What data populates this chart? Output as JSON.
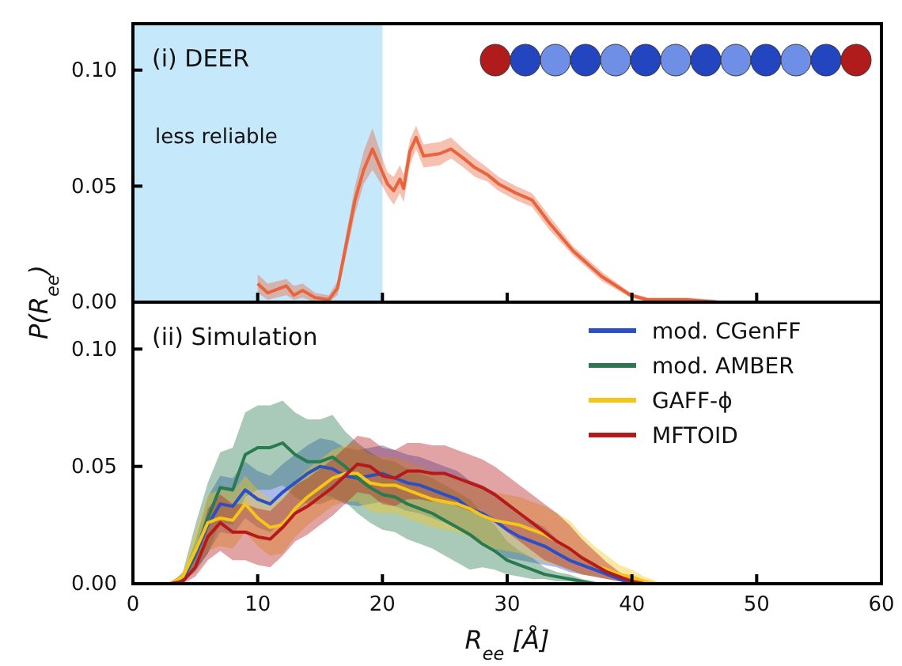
{
  "chart_data": [
    {
      "type": "line",
      "title": "(i) DEER",
      "ylabel": "P(R$_{ee}$)",
      "xlim": [
        0,
        60
      ],
      "ylim": [
        0,
        0.12
      ],
      "xticks": [
        0,
        10,
        20,
        30,
        40,
        50,
        60
      ],
      "yticks": [
        {
          "value": 0,
          "label": "0.00"
        },
        {
          "value": 0.05,
          "label": "0.05"
        },
        {
          "value": 0.1,
          "label": "0.10"
        }
      ],
      "tick_labels": "y",
      "grid": false,
      "legend": false,
      "bands": [
        {
          "axis": "x",
          "from": 0,
          "to": 20,
          "label": "less reliable",
          "color": "#c6e8fb"
        }
      ],
      "series": [
        {
          "color": "#e8643c",
          "x": [
            10,
            10.8,
            12.3,
            12.9,
            13.6,
            14.6,
            15.7,
            16.4,
            17.8,
            18.5,
            19.2,
            20,
            20.4,
            20.9,
            21.4,
            21.7,
            22.2,
            22.7,
            23.3,
            24.6,
            25.5,
            26.5,
            27.4,
            28.4,
            29.3,
            30.7,
            32,
            33.4,
            35.3,
            37.6,
            39.9,
            41.3,
            44.4,
            46.8
          ],
          "values": [
            0.008,
            0.004,
            0.007,
            0.003,
            0.005,
            0.002,
            0.001,
            0.006,
            0.044,
            0.057,
            0.066,
            0.056,
            0.051,
            0.048,
            0.053,
            0.049,
            0.065,
            0.071,
            0.063,
            0.064,
            0.066,
            0.062,
            0.058,
            0.055,
            0.051,
            0.047,
            0.044,
            0.034,
            0.022,
            0.011,
            0.003,
            0.001,
            0.001,
            0
          ],
          "lower": [
            0.004,
            0.001,
            0.003,
            0.001,
            0.002,
            0,
            0,
            0.003,
            0.038,
            0.051,
            0.057,
            0.05,
            0.046,
            0.042,
            0.047,
            0.043,
            0.059,
            0.066,
            0.058,
            0.059,
            0.062,
            0.058,
            0.054,
            0.052,
            0.048,
            0.044,
            0.041,
            0.031,
            0.02,
            0.009,
            0.002,
            0,
            0,
            0
          ],
          "upper": [
            0.012,
            0.008,
            0.01,
            0.007,
            0.008,
            0.004,
            0.003,
            0.009,
            0.05,
            0.065,
            0.075,
            0.062,
            0.056,
            0.054,
            0.059,
            0.055,
            0.07,
            0.076,
            0.068,
            0.069,
            0.071,
            0.066,
            0.062,
            0.058,
            0.054,
            0.05,
            0.047,
            0.037,
            0.024,
            0.013,
            0.004,
            0.002,
            0.002,
            0.001
          ]
        }
      ]
    },
    {
      "type": "line",
      "title": "(ii) Simulation",
      "xlabel": "R$_{ee}$ [Å]",
      "xlim": [
        0,
        60
      ],
      "ylim": [
        0,
        0.12
      ],
      "xticks": [
        0,
        10,
        20,
        30,
        40,
        50,
        60
      ],
      "yticks": [
        {
          "value": 0,
          "label": "0.00"
        },
        {
          "value": 0.05,
          "label": "0.05"
        },
        {
          "value": 0.1,
          "label": "0.10"
        }
      ],
      "grid": false,
      "legend": "top right",
      "x": [
        3,
        4,
        5,
        6,
        7,
        8,
        9,
        10,
        11,
        12,
        13,
        14,
        15,
        16,
        17,
        18,
        19,
        20,
        21,
        22,
        23,
        24,
        25,
        26,
        27,
        28,
        29,
        30,
        31,
        32,
        33,
        34,
        35,
        36,
        37,
        38,
        39,
        40,
        41,
        42,
        43
      ],
      "series": [
        {
          "name": "mod. CGenFF",
          "color": "#2b4fc7",
          "values": [
            0,
            0.002,
            0.012,
            0.025,
            0.034,
            0.033,
            0.04,
            0.036,
            0.034,
            0.039,
            0.043,
            0.047,
            0.05,
            0.049,
            0.046,
            0.045,
            0.046,
            0.047,
            0.045,
            0.043,
            0.042,
            0.04,
            0.038,
            0.036,
            0.032,
            0.03,
            0.027,
            0.023,
            0.02,
            0.018,
            0.016,
            0.013,
            0.01,
            0.008,
            0.006,
            0.004,
            0.002,
            0,
            0,
            null,
            null
          ],
          "lower": [
            0,
            0.001,
            0.006,
            0.013,
            0.022,
            0.021,
            0.028,
            0.024,
            0.022,
            0.027,
            0.031,
            0.035,
            0.038,
            0.037,
            0.034,
            0.033,
            0.034,
            0.035,
            0.033,
            0.031,
            0.03,
            0.028,
            0.026,
            0.024,
            0.02,
            0.018,
            0.015,
            0.011,
            0.01,
            0.009,
            0.008,
            0.007,
            0.005,
            0.004,
            0.003,
            0.002,
            0.001,
            0,
            0,
            0,
            0
          ],
          "upper": [
            0,
            0.003,
            0.018,
            0.037,
            0.046,
            0.045,
            0.052,
            0.048,
            0.046,
            0.051,
            0.055,
            0.059,
            0.062,
            0.061,
            0.058,
            0.057,
            0.058,
            0.059,
            0.057,
            0.055,
            0.054,
            0.052,
            0.05,
            0.048,
            0.044,
            0.042,
            0.039,
            0.035,
            0.03,
            0.027,
            0.024,
            0.019,
            0.015,
            0.012,
            0.009,
            0.006,
            0.003,
            0.001,
            0,
            0,
            0
          ]
        },
        {
          "name": "mod. AMBER",
          "color": "#2a7a50",
          "values": [
            0,
            0.003,
            0.013,
            0.028,
            0.041,
            0.04,
            0.055,
            0.058,
            0.058,
            0.06,
            0.055,
            0.052,
            0.052,
            0.054,
            0.05,
            0.045,
            0.041,
            0.038,
            0.037,
            0.034,
            0.032,
            0.03,
            0.027,
            0.024,
            0.021,
            0.017,
            0.014,
            0.01,
            0.008,
            0.006,
            0.004,
            0.003,
            0.002,
            0.001,
            0,
            null,
            null,
            null,
            null,
            null,
            null
          ],
          "lower": [
            0,
            0.001,
            0.005,
            0.013,
            0.026,
            0.025,
            0.037,
            0.04,
            0.04,
            0.042,
            0.037,
            0.034,
            0.034,
            0.036,
            0.035,
            0.03,
            0.026,
            0.023,
            0.022,
            0.019,
            0.017,
            0.015,
            0.012,
            0.009,
            0.006,
            0.007,
            0.006,
            0.004,
            0.003,
            0.002,
            0.002,
            0.001,
            0.001,
            0,
            0,
            0,
            0,
            0,
            0,
            0,
            0
          ],
          "upper": [
            0,
            0.005,
            0.025,
            0.043,
            0.056,
            0.058,
            0.073,
            0.076,
            0.076,
            0.078,
            0.073,
            0.07,
            0.07,
            0.072,
            0.065,
            0.06,
            0.056,
            0.053,
            0.052,
            0.049,
            0.047,
            0.045,
            0.042,
            0.039,
            0.036,
            0.03,
            0.025,
            0.018,
            0.014,
            0.011,
            0.007,
            0.005,
            0.004,
            0.002,
            0.001,
            0,
            0,
            0,
            0,
            0,
            0
          ]
        },
        {
          "name": "GAFF-ϕ",
          "color": "#f5c518",
          "values": [
            0,
            0.003,
            0.014,
            0.026,
            0.028,
            0.027,
            0.034,
            0.028,
            0.024,
            0.025,
            0.032,
            0.037,
            0.041,
            0.045,
            0.047,
            0.047,
            0.043,
            0.042,
            0.042,
            0.04,
            0.038,
            0.036,
            0.035,
            0.034,
            0.032,
            0.029,
            0.027,
            0.026,
            0.025,
            0.023,
            0.021,
            0.018,
            0.015,
            0.011,
            0.008,
            0.006,
            0.004,
            0.003,
            0.001,
            0,
            null
          ],
          "lower": [
            0,
            0.001,
            0.007,
            0.014,
            0.016,
            0.015,
            0.022,
            0.016,
            0.012,
            0.013,
            0.02,
            0.025,
            0.029,
            0.033,
            0.035,
            0.035,
            0.031,
            0.03,
            0.03,
            0.028,
            0.026,
            0.024,
            0.023,
            0.022,
            0.02,
            0.017,
            0.015,
            0.014,
            0.013,
            0.011,
            0.009,
            0.008,
            0.006,
            0.004,
            0.003,
            0.002,
            0.001,
            0.001,
            0,
            0,
            0
          ],
          "upper": [
            0,
            0.005,
            0.022,
            0.038,
            0.04,
            0.039,
            0.046,
            0.04,
            0.036,
            0.037,
            0.044,
            0.049,
            0.053,
            0.057,
            0.059,
            0.059,
            0.055,
            0.054,
            0.054,
            0.052,
            0.05,
            0.048,
            0.047,
            0.046,
            0.044,
            0.041,
            0.039,
            0.038,
            0.037,
            0.035,
            0.033,
            0.03,
            0.027,
            0.021,
            0.016,
            0.012,
            0.008,
            0.006,
            0.003,
            0.001,
            0
          ]
        },
        {
          "name": "MFTOID",
          "color": "#b5191c",
          "values": [
            0,
            0.001,
            0.007,
            0.02,
            0.026,
            0.022,
            0.022,
            0.02,
            0.019,
            0.024,
            0.03,
            0.033,
            0.037,
            0.041,
            0.046,
            0.051,
            0.05,
            0.046,
            0.045,
            0.048,
            0.048,
            0.047,
            0.047,
            0.045,
            0.043,
            0.041,
            0.038,
            0.034,
            0.03,
            0.026,
            0.022,
            0.018,
            0.015,
            0.011,
            0.008,
            0.005,
            0.003,
            0.001,
            0,
            null,
            null
          ],
          "lower": [
            0,
            0,
            0.003,
            0.01,
            0.014,
            0.01,
            0.01,
            0.008,
            0.007,
            0.012,
            0.018,
            0.021,
            0.025,
            0.029,
            0.034,
            0.039,
            0.038,
            0.034,
            0.033,
            0.036,
            0.036,
            0.035,
            0.035,
            0.033,
            0.031,
            0.029,
            0.026,
            0.022,
            0.018,
            0.014,
            0.01,
            0.008,
            0.006,
            0.004,
            0.003,
            0.002,
            0.001,
            0,
            0,
            0,
            0
          ],
          "upper": [
            0,
            0.002,
            0.012,
            0.032,
            0.038,
            0.034,
            0.034,
            0.032,
            0.031,
            0.036,
            0.042,
            0.045,
            0.049,
            0.053,
            0.058,
            0.063,
            0.062,
            0.058,
            0.057,
            0.06,
            0.06,
            0.059,
            0.059,
            0.057,
            0.055,
            0.053,
            0.05,
            0.046,
            0.042,
            0.038,
            0.034,
            0.03,
            0.025,
            0.019,
            0.014,
            0.009,
            0.005,
            0.002,
            0.001,
            0,
            0
          ]
        }
      ]
    }
  ]
}
